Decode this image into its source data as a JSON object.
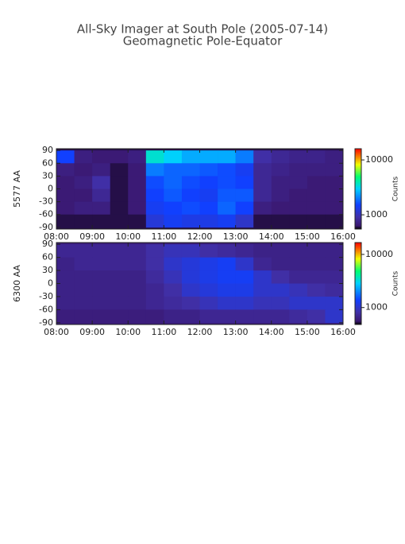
{
  "chart_data": [
    {
      "type": "heatmap",
      "title": "All-Sky Imager at South Pole (2005-07-14)",
      "subtitle": "Geomagnetic Pole-Equator",
      "y_label": "5577 AA",
      "colorbar_label": "Counts",
      "x": [
        8.25,
        8.75,
        9.25,
        9.75,
        10.25,
        10.75,
        11.25,
        11.75,
        12.25,
        12.75,
        13.25,
        13.75,
        14.25,
        14.75,
        15.25,
        15.75
      ],
      "y": [
        75,
        45,
        15,
        -15,
        -45,
        -75
      ],
      "z": [
        [
          1500,
          700,
          650,
          650,
          700,
          3500,
          3000,
          2500,
          2500,
          2500,
          2000,
          900,
          800,
          750,
          750,
          700
        ],
        [
          700,
          650,
          700,
          600,
          650,
          2000,
          1800,
          1800,
          1700,
          1600,
          1400,
          800,
          750,
          700,
          700,
          700
        ],
        [
          650,
          700,
          900,
          600,
          650,
          1600,
          1800,
          1600,
          1500,
          1600,
          1500,
          800,
          700,
          700,
          650,
          650
        ],
        [
          650,
          650,
          800,
          600,
          650,
          1500,
          1700,
          1500,
          1400,
          1700,
          1700,
          800,
          700,
          650,
          650,
          650
        ],
        [
          650,
          700,
          700,
          600,
          650,
          1400,
          1500,
          1600,
          1500,
          1800,
          1500,
          700,
          650,
          650,
          650,
          650
        ],
        [
          600,
          600,
          600,
          600,
          600,
          1200,
          1400,
          1300,
          1300,
          1400,
          1100,
          600,
          600,
          600,
          600,
          600
        ]
      ],
      "xlim": [
        8,
        16
      ],
      "xticks": [
        {
          "value": 8,
          "label": "08:00"
        },
        {
          "value": 9,
          "label": "09:00"
        },
        {
          "value": 10,
          "label": "10:00"
        },
        {
          "value": 11,
          "label": "11:00"
        },
        {
          "value": 12,
          "label": "12:00"
        },
        {
          "value": 13,
          "label": "13:00"
        },
        {
          "value": 14,
          "label": "14:00"
        },
        {
          "value": 15,
          "label": "15:00"
        },
        {
          "value": 16,
          "label": "16:00"
        }
      ],
      "ylim": [
        -94,
        94
      ],
      "yticks": [
        90,
        60,
        30,
        0,
        -30,
        -60,
        -90
      ],
      "zlim": [
        550,
        16000
      ],
      "zticks": [
        1000,
        10000
      ],
      "zscale": "log"
    },
    {
      "type": "heatmap",
      "y_label": "6300 AA",
      "colorbar_label": "Counts",
      "x": [
        8.25,
        8.75,
        9.25,
        9.75,
        10.25,
        10.75,
        11.25,
        11.75,
        12.25,
        12.75,
        13.25,
        13.75,
        14.25,
        14.75,
        15.25,
        15.75
      ],
      "y": [
        75,
        45,
        15,
        -15,
        -45,
        -75
      ],
      "z": [
        [
          700,
          700,
          700,
          700,
          700,
          800,
          900,
          900,
          800,
          750,
          700,
          650,
          650,
          650,
          650,
          650
        ],
        [
          650,
          700,
          700,
          700,
          700,
          800,
          1000,
          1100,
          1200,
          1300,
          1000,
          700,
          650,
          650,
          650,
          650
        ],
        [
          650,
          650,
          650,
          650,
          650,
          750,
          900,
          1100,
          1200,
          1300,
          1300,
          1000,
          800,
          700,
          700,
          700
        ],
        [
          650,
          650,
          650,
          650,
          650,
          700,
          800,
          1000,
          1100,
          1200,
          1200,
          1000,
          1000,
          900,
          800,
          750
        ],
        [
          650,
          650,
          650,
          650,
          650,
          700,
          750,
          800,
          900,
          1000,
          1000,
          900,
          900,
          1000,
          1000,
          1000
        ],
        [
          600,
          600,
          600,
          600,
          600,
          600,
          650,
          650,
          700,
          700,
          700,
          700,
          700,
          750,
          800,
          1000
        ]
      ],
      "xlim": [
        8,
        16
      ],
      "xticks": [
        {
          "value": 8,
          "label": "08:00"
        },
        {
          "value": 9,
          "label": "09:00"
        },
        {
          "value": 10,
          "label": "10:00"
        },
        {
          "value": 11,
          "label": "11:00"
        },
        {
          "value": 12,
          "label": "12:00"
        },
        {
          "value": 13,
          "label": "13:00"
        },
        {
          "value": 14,
          "label": "14:00"
        },
        {
          "value": 15,
          "label": "15:00"
        },
        {
          "value": 16,
          "label": "16:00"
        }
      ],
      "ylim": [
        -94,
        94
      ],
      "yticks": [
        90,
        60,
        30,
        0,
        -30,
        -60,
        -90
      ],
      "zlim": [
        480,
        16700
      ],
      "zticks": [
        1000,
        10000
      ],
      "zscale": "log"
    }
  ]
}
